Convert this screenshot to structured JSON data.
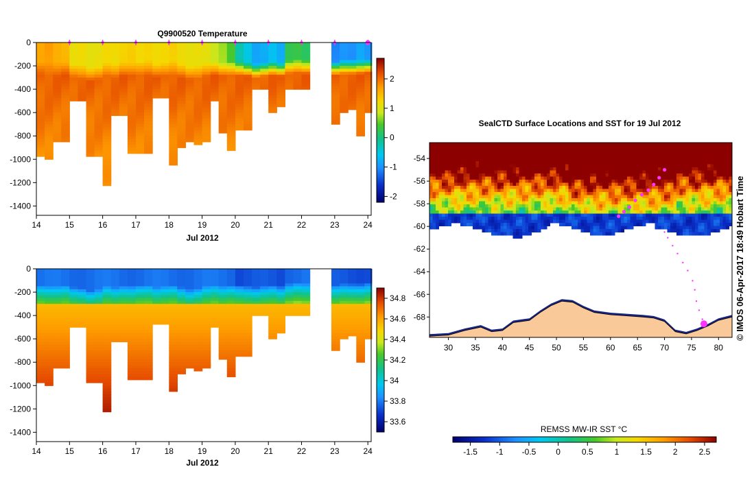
{
  "colors": {
    "axis": "#000000",
    "marker": "#ff33ff",
    "land": "#f9c99a",
    "ice_edge": "#1a237e"
  },
  "chart_data": [
    {
      "id": "temperature",
      "type": "heatmap",
      "title": "Q9900520  Temperature",
      "xlabel": "Jul 2012",
      "xlim": [
        14,
        24.1
      ],
      "ylim": [
        -1480,
        0
      ],
      "x_ticks": [
        "14",
        "15",
        "16",
        "17",
        "18",
        "19",
        "20",
        "21",
        "22",
        "23",
        "24"
      ],
      "y_ticks": [
        "0",
        "-200",
        "-400",
        "-600",
        "-800",
        "-1000",
        "-1200",
        "-1400"
      ],
      "colorbar": {
        "min": -2.2,
        "max": 2.7,
        "ticks": [
          "2",
          "1",
          "0",
          "-1",
          "-2"
        ]
      },
      "surface_marker_days": [
        15,
        16,
        17,
        18,
        19,
        20,
        21,
        22,
        23,
        24
      ],
      "profiles": [
        {
          "day": 14.1,
          "depth": 970,
          "surf": 1.6,
          "mix": 160
        },
        {
          "day": 14.35,
          "depth": 985,
          "surf": 1.7,
          "mix": 170
        },
        {
          "day": 14.6,
          "depth": 830,
          "surf": 1.6,
          "mix": 170
        },
        {
          "day": 14.85,
          "depth": 840,
          "surf": 1.5,
          "mix": 160
        },
        {
          "day": 15.1,
          "depth": 490,
          "surf": 1.1,
          "mix": 180
        },
        {
          "day": 15.35,
          "depth": 490,
          "surf": 1.2,
          "mix": 190
        },
        {
          "day": 15.6,
          "depth": 960,
          "surf": 1.1,
          "mix": 210
        },
        {
          "day": 15.85,
          "depth": 960,
          "surf": 1.1,
          "mix": 200
        },
        {
          "day": 16.1,
          "depth": 1210,
          "surf": 1.2,
          "mix": 170
        },
        {
          "day": 16.35,
          "depth": 620,
          "surf": 1.2,
          "mix": 180
        },
        {
          "day": 16.6,
          "depth": 620,
          "surf": 1.3,
          "mix": 170
        },
        {
          "day": 16.85,
          "depth": 930,
          "surf": 1.3,
          "mix": 170
        },
        {
          "day": 17.1,
          "depth": 930,
          "surf": 1.2,
          "mix": 160
        },
        {
          "day": 17.35,
          "depth": 930,
          "surf": 1.3,
          "mix": 160
        },
        {
          "day": 17.6,
          "depth": 460,
          "surf": 1.2,
          "mix": 180
        },
        {
          "day": 17.85,
          "depth": 460,
          "surf": 1.2,
          "mix": 170
        },
        {
          "day": 18.1,
          "depth": 1030,
          "surf": 1.3,
          "mix": 160
        },
        {
          "day": 18.35,
          "depth": 900,
          "surf": 1.2,
          "mix": 180
        },
        {
          "day": 18.6,
          "depth": 840,
          "surf": 1.1,
          "mix": 200
        },
        {
          "day": 18.85,
          "depth": 870,
          "surf": 1.1,
          "mix": 190
        },
        {
          "day": 19.1,
          "depth": 830,
          "surf": 1.1,
          "mix": 170
        },
        {
          "day": 19.35,
          "depth": 490,
          "surf": 0.9,
          "mix": 160
        },
        {
          "day": 19.6,
          "depth": 760,
          "surf": 0.7,
          "mix": 170
        },
        {
          "day": 19.85,
          "depth": 920,
          "surf": 0.4,
          "mix": 160
        },
        {
          "day": 20.1,
          "depth": 750,
          "surf": -0.2,
          "mix": 160
        },
        {
          "day": 20.35,
          "depth": 750,
          "surf": -0.5,
          "mix": 170
        },
        {
          "day": 20.6,
          "depth": 400,
          "surf": -0.9,
          "mix": 180
        },
        {
          "day": 20.85,
          "depth": 400,
          "surf": -0.8,
          "mix": 170
        },
        {
          "day": 21.1,
          "depth": 590,
          "surf": -0.6,
          "mix": 160
        },
        {
          "day": 21.35,
          "depth": 550,
          "surf": -0.8,
          "mix": 170
        },
        {
          "day": 21.6,
          "depth": 400,
          "surf": 0.2,
          "mix": 150
        },
        {
          "day": 21.85,
          "depth": 400,
          "surf": 0.3,
          "mix": 140
        },
        {
          "day": 22.1,
          "depth": 400,
          "surf": 0.2,
          "mix": 150
        },
        {
          "day": 23.0,
          "depth": 680,
          "surf": -1.1,
          "mix": 160
        },
        {
          "day": 23.25,
          "depth": 580,
          "surf": -1.0,
          "mix": 150
        },
        {
          "day": 23.5,
          "depth": 570,
          "surf": -1.0,
          "mix": 150
        },
        {
          "day": 23.75,
          "depth": 780,
          "surf": -0.8,
          "mix": 150
        },
        {
          "day": 24.0,
          "depth": 600,
          "surf": -1.0,
          "mix": 140
        }
      ]
    },
    {
      "id": "salinity",
      "type": "heatmap",
      "title": "",
      "xlabel": "Jul 2012",
      "xlim": [
        14,
        24.1
      ],
      "ylim": [
        -1480,
        0
      ],
      "x_ticks": [
        "14",
        "15",
        "16",
        "17",
        "18",
        "19",
        "20",
        "21",
        "22",
        "23",
        "24"
      ],
      "y_ticks": [
        "0",
        "-200",
        "-400",
        "-600",
        "-800",
        "-1000",
        "-1200",
        "-1400"
      ],
      "colorbar": {
        "min": 33.5,
        "max": 34.9,
        "ticks": [
          "34.8",
          "34.6",
          "34.4",
          "34.2",
          "34",
          "33.8",
          "33.6"
        ]
      }
    },
    {
      "id": "sst_map",
      "type": "heatmap",
      "title": "SealCTD Surface Locations and SST for 19 Jul 2012",
      "xlim": [
        26.5,
        82.5
      ],
      "ylim": [
        -69.8,
        -52.6
      ],
      "x_ticks": [
        "30",
        "35",
        "40",
        "45",
        "50",
        "55",
        "60",
        "65",
        "70",
        "75",
        "80"
      ],
      "y_ticks": [
        "-54",
        "-56",
        "-58",
        "-60",
        "-62",
        "-64",
        "-66",
        "-68"
      ],
      "side_label": "© IMOS 06-Apr-2017 18:49 Hobart Time",
      "colorbar": {
        "label": "REMSS MW-IR SST °C",
        "min": -1.8,
        "max": 2.7,
        "ticks": [
          "-1.5",
          "-1",
          "-0.5",
          "0",
          "0.5",
          "1",
          "1.5",
          "2",
          "2.5"
        ]
      },
      "track": [
        [
          77.3,
          -68.6
        ],
        [
          77.0,
          -68.2
        ],
        [
          76.4,
          -67.4
        ],
        [
          75.9,
          -66.6
        ],
        [
          75.6,
          -65.6
        ],
        [
          75.2,
          -64.8
        ],
        [
          74.3,
          -63.9
        ],
        [
          73.4,
          -63.2
        ],
        [
          72.4,
          -62.4
        ],
        [
          71.5,
          -61.7
        ],
        [
          70.6,
          -61.0
        ],
        [
          70.0,
          -60.5
        ]
      ],
      "recent_track": [
        [
          61.5,
          -59.1
        ],
        [
          62.5,
          -58.7
        ],
        [
          63.5,
          -58.3
        ],
        [
          64.6,
          -57.7
        ],
        [
          65.8,
          -57.2
        ],
        [
          67.0,
          -56.8
        ],
        [
          68.0,
          -56.3
        ],
        [
          69.0,
          -55.7
        ],
        [
          70.0,
          -55.0
        ]
      ]
    }
  ]
}
